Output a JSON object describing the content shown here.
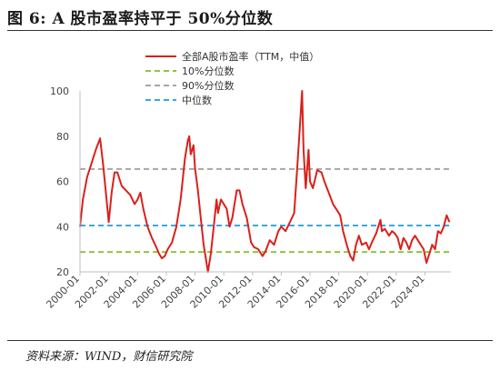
{
  "figure": {
    "title": "图 6:  A 股市盈率持平于 50%分位数",
    "source": "资料来源：WIND，财信研究院"
  },
  "colors": {
    "pe_line": "#d9211c",
    "p10": "#8dc63f",
    "p90": "#a6a6a6",
    "median": "#3aa8e0",
    "axis": "#bfbfbf"
  },
  "chart_data": {
    "type": "line",
    "xlabel": "",
    "ylabel": "",
    "ylim": [
      20,
      100
    ],
    "yticks": [
      20,
      40,
      60,
      80,
      100
    ],
    "xlim": [
      2000.0,
      2025.8
    ],
    "xtick_labels": [
      "2000-01",
      "2002-01",
      "2004-01",
      "2006-01",
      "2008-01",
      "2010-01",
      "2012-01",
      "2014-01",
      "2016-01",
      "2018-01",
      "2020-01",
      "2022-01",
      "2024-01"
    ],
    "grid": false,
    "legend_position": "top-right",
    "series": [
      {
        "name": "全部A股市盈率（TTM，中值）",
        "style": "solid",
        "points": [
          [
            2000.0,
            40
          ],
          [
            2000.2,
            52
          ],
          [
            2000.5,
            62
          ],
          [
            2000.8,
            68
          ],
          [
            2001.1,
            74
          ],
          [
            2001.4,
            79
          ],
          [
            2001.6,
            68
          ],
          [
            2001.8,
            55
          ],
          [
            2002.0,
            42
          ],
          [
            2002.2,
            55
          ],
          [
            2002.4,
            64
          ],
          [
            2002.6,
            64
          ],
          [
            2002.9,
            58
          ],
          [
            2003.2,
            56
          ],
          [
            2003.5,
            54
          ],
          [
            2003.8,
            50
          ],
          [
            2004.0,
            52
          ],
          [
            2004.2,
            55
          ],
          [
            2004.4,
            48
          ],
          [
            2004.7,
            40
          ],
          [
            2005.0,
            35
          ],
          [
            2005.3,
            31
          ],
          [
            2005.5,
            28
          ],
          [
            2005.7,
            26
          ],
          [
            2005.9,
            27
          ],
          [
            2006.1,
            30
          ],
          [
            2006.4,
            33
          ],
          [
            2006.7,
            40
          ],
          [
            2007.0,
            52
          ],
          [
            2007.3,
            70
          ],
          [
            2007.5,
            78
          ],
          [
            2007.6,
            80
          ],
          [
            2007.7,
            72
          ],
          [
            2007.9,
            76
          ],
          [
            2008.0,
            66
          ],
          [
            2008.2,
            56
          ],
          [
            2008.4,
            44
          ],
          [
            2008.6,
            32
          ],
          [
            2008.8,
            24
          ],
          [
            2008.9,
            20
          ],
          [
            2009.1,
            28
          ],
          [
            2009.3,
            40
          ],
          [
            2009.5,
            52
          ],
          [
            2009.6,
            46
          ],
          [
            2009.8,
            52
          ],
          [
            2010.0,
            50
          ],
          [
            2010.2,
            48
          ],
          [
            2010.4,
            40
          ],
          [
            2010.6,
            44
          ],
          [
            2010.9,
            56
          ],
          [
            2011.1,
            56
          ],
          [
            2011.3,
            50
          ],
          [
            2011.6,
            44
          ],
          [
            2011.9,
            33
          ],
          [
            2012.1,
            31
          ],
          [
            2012.4,
            30
          ],
          [
            2012.7,
            27
          ],
          [
            2012.9,
            29
          ],
          [
            2013.2,
            34
          ],
          [
            2013.5,
            32
          ],
          [
            2013.8,
            38
          ],
          [
            2014.0,
            40
          ],
          [
            2014.3,
            38
          ],
          [
            2014.6,
            42
          ],
          [
            2014.9,
            46
          ],
          [
            2015.1,
            65
          ],
          [
            2015.3,
            85
          ],
          [
            2015.45,
            100
          ],
          [
            2015.55,
            74
          ],
          [
            2015.7,
            57
          ],
          [
            2015.9,
            74
          ],
          [
            2016.0,
            60
          ],
          [
            2016.2,
            57
          ],
          [
            2016.5,
            65
          ],
          [
            2016.8,
            64
          ],
          [
            2017.0,
            60
          ],
          [
            2017.3,
            55
          ],
          [
            2017.6,
            50
          ],
          [
            2017.9,
            47
          ],
          [
            2018.1,
            45
          ],
          [
            2018.3,
            38
          ],
          [
            2018.6,
            31
          ],
          [
            2018.8,
            27
          ],
          [
            2019.0,
            25
          ],
          [
            2019.2,
            32
          ],
          [
            2019.4,
            36
          ],
          [
            2019.6,
            32
          ],
          [
            2019.9,
            33
          ],
          [
            2020.1,
            30
          ],
          [
            2020.3,
            33
          ],
          [
            2020.6,
            37
          ],
          [
            2020.9,
            43
          ],
          [
            2021.0,
            38
          ],
          [
            2021.2,
            39
          ],
          [
            2021.5,
            36
          ],
          [
            2021.7,
            38
          ],
          [
            2021.9,
            37
          ],
          [
            2022.1,
            35
          ],
          [
            2022.3,
            30
          ],
          [
            2022.5,
            35
          ],
          [
            2022.7,
            33
          ],
          [
            2022.9,
            30
          ],
          [
            2023.1,
            34
          ],
          [
            2023.3,
            36
          ],
          [
            2023.6,
            33
          ],
          [
            2023.9,
            30
          ],
          [
            2024.1,
            24
          ],
          [
            2024.3,
            28
          ],
          [
            2024.5,
            32
          ],
          [
            2024.7,
            30
          ],
          [
            2024.9,
            38
          ],
          [
            2025.1,
            37
          ],
          [
            2025.3,
            40
          ],
          [
            2025.5,
            45
          ],
          [
            2025.7,
            42
          ]
        ]
      },
      {
        "name": "10%分位数",
        "style": "dashed",
        "value": 28.8
      },
      {
        "name": "90%分位数",
        "style": "dashed",
        "value": 65.5
      },
      {
        "name": "中位数",
        "style": "dashed",
        "value": 40.5
      }
    ]
  }
}
